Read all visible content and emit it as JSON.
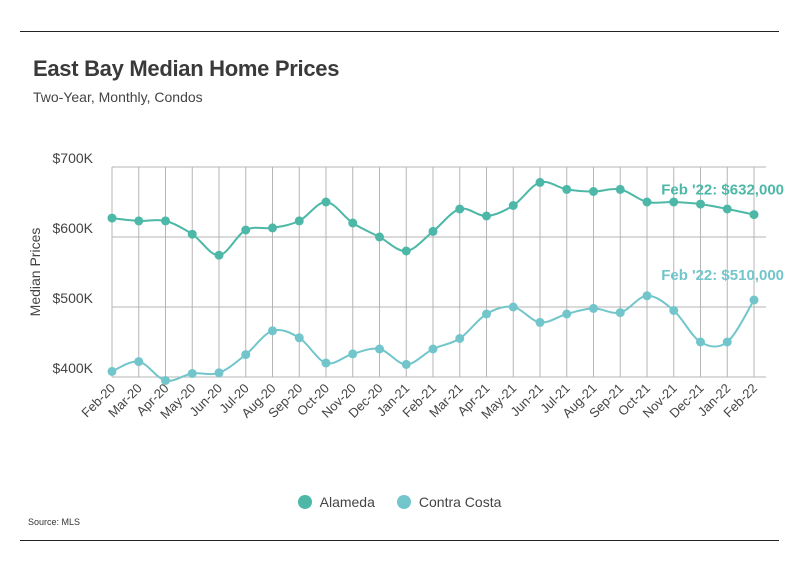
{
  "header": {
    "title": "East Bay Median Home Prices",
    "subtitle": "Two-Year, Monthly, Condos"
  },
  "footer": {
    "source": "Source: MLS"
  },
  "colors": {
    "alameda": "#4db8a7",
    "contra_costa": "#72c6cb",
    "grid": "#b5b5b5",
    "text": "#444444"
  },
  "chart_data": {
    "type": "line",
    "title": "East Bay Median Home Prices",
    "subtitle": "Two-Year, Monthly, Condos",
    "xlabel": "",
    "ylabel": "Median Prices",
    "ylim": [
      400000,
      700000
    ],
    "y_ticks": [
      400000,
      500000,
      600000,
      700000
    ],
    "y_tick_labels": [
      "$400K",
      "$500K",
      "$600K",
      "$700K"
    ],
    "grid": true,
    "legend": "bottom-center",
    "categories": [
      "Feb-20",
      "Mar-20",
      "Apr-20",
      "May-20",
      "Jun-20",
      "Jul-20",
      "Aug-20",
      "Sep-20",
      "Oct-20",
      "Nov-20",
      "Dec-20",
      "Jan-21",
      "Feb-21",
      "Mar-21",
      "Apr-21",
      "May-21",
      "Jun-21",
      "Jul-21",
      "Aug-21",
      "Sep-21",
      "Oct-21",
      "Nov-21",
      "Dec-21",
      "Jan-22",
      "Feb-22"
    ],
    "series": [
      {
        "name": "Alameda",
        "values": [
          627000,
          623000,
          623000,
          604000,
          574000,
          610000,
          613000,
          623000,
          650000,
          620000,
          600000,
          580000,
          608000,
          640000,
          630000,
          645000,
          678000,
          668000,
          665000,
          668000,
          650000,
          650000,
          647000,
          640000,
          632000
        ]
      },
      {
        "name": "Contra Costa",
        "values": [
          408000,
          422000,
          395000,
          405000,
          406000,
          432000,
          466000,
          456000,
          420000,
          433000,
          440000,
          418000,
          440000,
          455000,
          490000,
          500000,
          478000,
          490000,
          498000,
          492000,
          516000,
          495000,
          450000,
          450000,
          510000
        ]
      }
    ],
    "annotations": [
      {
        "text": "Feb '22: $632,000",
        "series": "Alameda"
      },
      {
        "text": "Feb '22: $510,000",
        "series": "Contra Costa"
      }
    ]
  }
}
